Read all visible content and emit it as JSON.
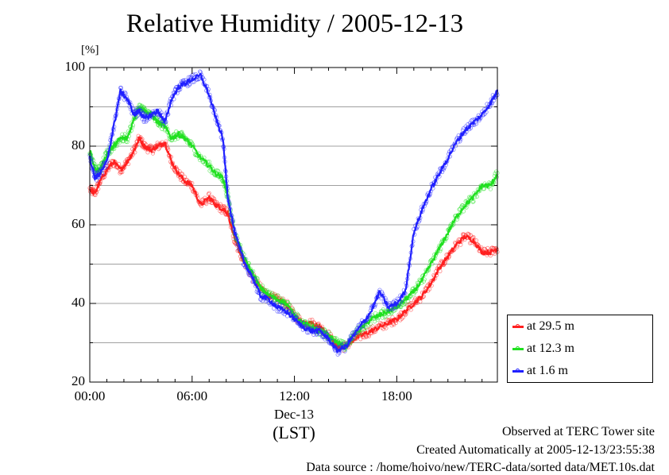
{
  "title": "Relative Humidity / 2005-12-13",
  "chart_data": {
    "type": "line",
    "title": "Relative Humidity / 2005-12-13",
    "ylabel": "[%]",
    "xlabel": "(LST)",
    "date_label": "Dec-13",
    "ylim": [
      20,
      100
    ],
    "xlim": [
      0,
      23.9
    ],
    "y_ticks": [
      "20",
      "40",
      "60",
      "80",
      "100"
    ],
    "x_ticks": [
      {
        "value": 0,
        "label": "00:00"
      },
      {
        "value": 6,
        "label": "06:00"
      },
      {
        "value": 12,
        "label": "12:00"
      },
      {
        "value": 18,
        "label": "18:00"
      }
    ],
    "grid": true,
    "legend_position": "bottom-right, outside plot",
    "series": [
      {
        "name": "at 29.5 m",
        "color": "#ff2020",
        "x": [
          0,
          0.3,
          0.6,
          1.0,
          1.4,
          1.8,
          2.2,
          2.6,
          2.9,
          3.2,
          3.6,
          4.0,
          4.4,
          4.8,
          5.2,
          5.6,
          6.0,
          6.5,
          7.0,
          7.4,
          7.8,
          8.1,
          8.5,
          9.0,
          9.5,
          10.0,
          10.5,
          11.0,
          11.5,
          12.0,
          12.5,
          13.0,
          13.5,
          14.0,
          14.5,
          15.0,
          15.5,
          16.0,
          16.5,
          17.0,
          17.5,
          18.0,
          18.5,
          19.0,
          19.5,
          20.0,
          20.5,
          21.0,
          21.5,
          22.0,
          22.5,
          23.0,
          23.5,
          23.9
        ],
        "values": [
          69,
          68,
          71,
          74,
          76,
          74,
          76,
          79,
          82,
          80,
          79,
          80,
          81,
          76,
          73,
          71,
          70,
          65,
          67,
          65,
          64,
          63,
          56,
          51,
          47,
          44,
          42,
          41,
          40,
          37,
          35,
          35,
          34,
          32,
          29,
          29,
          31,
          32,
          33,
          34,
          35,
          36,
          38,
          40,
          42,
          45,
          49,
          52,
          55,
          57,
          56,
          53,
          53,
          54
        ]
      },
      {
        "name": "at 12.3 m",
        "color": "#20e020",
        "x": [
          0,
          0.3,
          0.6,
          1.0,
          1.4,
          1.8,
          2.2,
          2.6,
          2.9,
          3.2,
          3.6,
          4.0,
          4.4,
          4.8,
          5.2,
          5.6,
          6.0,
          6.5,
          7.0,
          7.4,
          7.8,
          8.1,
          8.5,
          9.0,
          9.5,
          10.0,
          10.5,
          11.0,
          11.5,
          12.0,
          12.5,
          13.0,
          13.5,
          14.0,
          14.5,
          15.0,
          15.5,
          16.0,
          16.5,
          17.0,
          17.5,
          18.0,
          18.5,
          19.0,
          19.5,
          20.0,
          20.5,
          21.0,
          21.5,
          22.0,
          22.5,
          23.0,
          23.5,
          23.9
        ],
        "values": [
          79,
          74,
          74,
          78,
          80,
          82,
          82,
          87,
          90,
          89,
          88,
          86,
          85,
          82,
          83,
          82,
          80,
          77,
          75,
          73,
          72,
          67,
          58,
          52,
          48,
          44,
          42,
          41,
          40,
          37,
          35,
          34,
          33,
          32,
          30,
          29,
          32,
          34,
          36,
          37,
          38,
          39,
          41,
          43,
          46,
          50,
          54,
          58,
          62,
          65,
          67,
          70,
          70,
          73
        ]
      },
      {
        "name": "at 1.6 m",
        "color": "#2020ff",
        "x": [
          0,
          0.3,
          0.6,
          1.0,
          1.4,
          1.8,
          2.2,
          2.6,
          2.9,
          3.2,
          3.6,
          4.0,
          4.4,
          4.8,
          5.2,
          5.6,
          6.0,
          6.5,
          7.0,
          7.4,
          7.8,
          8.1,
          8.5,
          9.0,
          9.5,
          10.0,
          10.5,
          11.0,
          11.5,
          12.0,
          12.5,
          13.0,
          13.5,
          14.0,
          14.5,
          15.0,
          15.5,
          16.0,
          16.5,
          17.0,
          17.5,
          18.0,
          18.5,
          19.0,
          19.5,
          20.0,
          20.5,
          21.0,
          21.5,
          22.0,
          22.5,
          23.0,
          23.5,
          23.9
        ],
        "values": [
          77,
          72,
          73,
          76,
          85,
          94,
          92,
          88,
          89,
          87,
          88,
          89,
          86,
          92,
          95,
          96,
          97,
          98,
          93,
          87,
          82,
          67,
          58,
          51,
          47,
          42,
          41,
          39,
          38,
          36,
          34,
          33,
          33,
          31,
          28,
          29,
          32,
          35,
          38,
          43,
          39,
          40,
          43,
          58,
          64,
          69,
          73,
          77,
          81,
          84,
          86,
          88,
          91,
          94
        ]
      }
    ]
  },
  "footer": {
    "line1": "Observed at TERC Tower site",
    "line2": "Created Automatically at 2005-12-13/23:55:38",
    "line3": "Data source : /home/hoivo/new/TERC-data/sorted  data/MET.10s.dat"
  }
}
